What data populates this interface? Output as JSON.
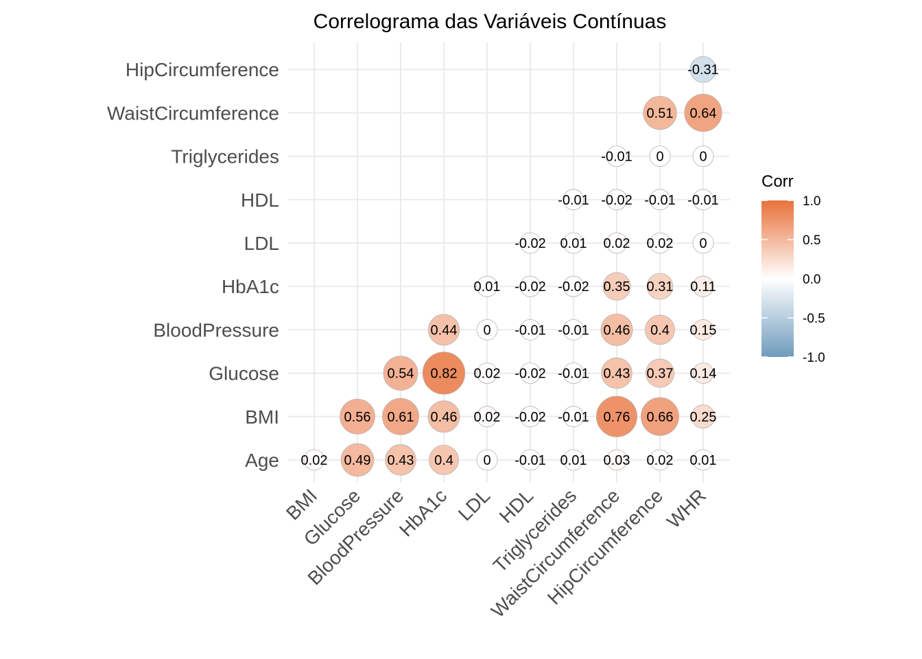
{
  "chart_data": {
    "type": "heatmap",
    "title": "Correlograma das Variáveis Contínuas",
    "x_categories": [
      "BMI",
      "Glucose",
      "BloodPressure",
      "HbA1c",
      "LDL",
      "HDL",
      "Triglycerides",
      "WaistCircumference",
      "HipCircumference",
      "WHR"
    ],
    "y_categories": [
      "Age",
      "BMI",
      "Glucose",
      "BloodPressure",
      "HbA1c",
      "LDL",
      "HDL",
      "Triglycerides",
      "WaistCircumference",
      "HipCircumference"
    ],
    "cells": [
      {
        "x": "BMI",
        "y": "Age",
        "value": 0.02,
        "label": "0.02"
      },
      {
        "x": "Glucose",
        "y": "Age",
        "value": 0.49,
        "label": "0.49"
      },
      {
        "x": "BloodPressure",
        "y": "Age",
        "value": 0.43,
        "label": "0.43"
      },
      {
        "x": "HbA1c",
        "y": "Age",
        "value": 0.4,
        "label": "0.4"
      },
      {
        "x": "LDL",
        "y": "Age",
        "value": 0,
        "label": "0"
      },
      {
        "x": "HDL",
        "y": "Age",
        "value": -0.01,
        "label": "-0.01"
      },
      {
        "x": "Triglycerides",
        "y": "Age",
        "value": 0.01,
        "label": "0.01"
      },
      {
        "x": "WaistCircumference",
        "y": "Age",
        "value": 0.03,
        "label": "0.03"
      },
      {
        "x": "HipCircumference",
        "y": "Age",
        "value": 0.02,
        "label": "0.02"
      },
      {
        "x": "WHR",
        "y": "Age",
        "value": 0.01,
        "label": "0.01"
      },
      {
        "x": "Glucose",
        "y": "BMI",
        "value": 0.56,
        "label": "0.56"
      },
      {
        "x": "BloodPressure",
        "y": "BMI",
        "value": 0.61,
        "label": "0.61"
      },
      {
        "x": "HbA1c",
        "y": "BMI",
        "value": 0.46,
        "label": "0.46"
      },
      {
        "x": "LDL",
        "y": "BMI",
        "value": 0.02,
        "label": "0.02"
      },
      {
        "x": "HDL",
        "y": "BMI",
        "value": -0.02,
        "label": "-0.02"
      },
      {
        "x": "Triglycerides",
        "y": "BMI",
        "value": -0.01,
        "label": "-0.01"
      },
      {
        "x": "WaistCircumference",
        "y": "BMI",
        "value": 0.76,
        "label": "0.76"
      },
      {
        "x": "HipCircumference",
        "y": "BMI",
        "value": 0.66,
        "label": "0.66"
      },
      {
        "x": "WHR",
        "y": "BMI",
        "value": 0.25,
        "label": "0.25"
      },
      {
        "x": "BloodPressure",
        "y": "Glucose",
        "value": 0.54,
        "label": "0.54"
      },
      {
        "x": "HbA1c",
        "y": "Glucose",
        "value": 0.82,
        "label": "0.82"
      },
      {
        "x": "LDL",
        "y": "Glucose",
        "value": 0.02,
        "label": "0.02"
      },
      {
        "x": "HDL",
        "y": "Glucose",
        "value": -0.02,
        "label": "-0.02"
      },
      {
        "x": "Triglycerides",
        "y": "Glucose",
        "value": -0.01,
        "label": "-0.01"
      },
      {
        "x": "WaistCircumference",
        "y": "Glucose",
        "value": 0.43,
        "label": "0.43"
      },
      {
        "x": "HipCircumference",
        "y": "Glucose",
        "value": 0.37,
        "label": "0.37"
      },
      {
        "x": "WHR",
        "y": "Glucose",
        "value": 0.14,
        "label": "0.14"
      },
      {
        "x": "HbA1c",
        "y": "BloodPressure",
        "value": 0.44,
        "label": "0.44"
      },
      {
        "x": "LDL",
        "y": "BloodPressure",
        "value": 0,
        "label": "0"
      },
      {
        "x": "HDL",
        "y": "BloodPressure",
        "value": -0.01,
        "label": "-0.01"
      },
      {
        "x": "Triglycerides",
        "y": "BloodPressure",
        "value": -0.01,
        "label": "-0.01"
      },
      {
        "x": "WaistCircumference",
        "y": "BloodPressure",
        "value": 0.46,
        "label": "0.46"
      },
      {
        "x": "HipCircumference",
        "y": "BloodPressure",
        "value": 0.4,
        "label": "0.4"
      },
      {
        "x": "WHR",
        "y": "BloodPressure",
        "value": 0.15,
        "label": "0.15"
      },
      {
        "x": "LDL",
        "y": "HbA1c",
        "value": 0.01,
        "label": "0.01"
      },
      {
        "x": "HDL",
        "y": "HbA1c",
        "value": -0.02,
        "label": "-0.02"
      },
      {
        "x": "Triglycerides",
        "y": "HbA1c",
        "value": -0.02,
        "label": "-0.02"
      },
      {
        "x": "WaistCircumference",
        "y": "HbA1c",
        "value": 0.35,
        "label": "0.35"
      },
      {
        "x": "HipCircumference",
        "y": "HbA1c",
        "value": 0.31,
        "label": "0.31"
      },
      {
        "x": "WHR",
        "y": "HbA1c",
        "value": 0.11,
        "label": "0.11"
      },
      {
        "x": "HDL",
        "y": "LDL",
        "value": -0.02,
        "label": "-0.02"
      },
      {
        "x": "Triglycerides",
        "y": "LDL",
        "value": 0.01,
        "label": "0.01"
      },
      {
        "x": "WaistCircumference",
        "y": "LDL",
        "value": 0.02,
        "label": "0.02"
      },
      {
        "x": "HipCircumference",
        "y": "LDL",
        "value": 0.02,
        "label": "0.02"
      },
      {
        "x": "WHR",
        "y": "LDL",
        "value": 0,
        "label": "0"
      },
      {
        "x": "Triglycerides",
        "y": "HDL",
        "value": -0.01,
        "label": "-0.01"
      },
      {
        "x": "WaistCircumference",
        "y": "HDL",
        "value": -0.02,
        "label": "-0.02"
      },
      {
        "x": "HipCircumference",
        "y": "HDL",
        "value": -0.01,
        "label": "-0.01"
      },
      {
        "x": "WHR",
        "y": "HDL",
        "value": -0.01,
        "label": "-0.01"
      },
      {
        "x": "WaistCircumference",
        "y": "Triglycerides",
        "value": -0.01,
        "label": "-0.01"
      },
      {
        "x": "HipCircumference",
        "y": "Triglycerides",
        "value": 0,
        "label": "0"
      },
      {
        "x": "WHR",
        "y": "Triglycerides",
        "value": 0,
        "label": "0"
      },
      {
        "x": "HipCircumference",
        "y": "WaistCircumference",
        "value": 0.51,
        "label": "0.51"
      },
      {
        "x": "WHR",
        "y": "WaistCircumference",
        "value": 0.64,
        "label": "0.64"
      },
      {
        "x": "WHR",
        "y": "HipCircumference",
        "value": -0.31,
        "label": "-0.31"
      }
    ],
    "legend": {
      "title": "Corr",
      "position": "right",
      "ticks": [
        {
          "value": 1.0,
          "label": "1.0"
        },
        {
          "value": 0.5,
          "label": "0.5"
        },
        {
          "value": 0.0,
          "label": "0.0"
        },
        {
          "value": -0.5,
          "label": "-0.5"
        },
        {
          "value": -1.0,
          "label": "-1.0"
        }
      ],
      "range": [
        -1,
        1
      ]
    },
    "colors": {
      "positive": "#E8713A",
      "mid": "#FFFFFF",
      "negative": "#6F9BBD"
    },
    "grid": true
  }
}
